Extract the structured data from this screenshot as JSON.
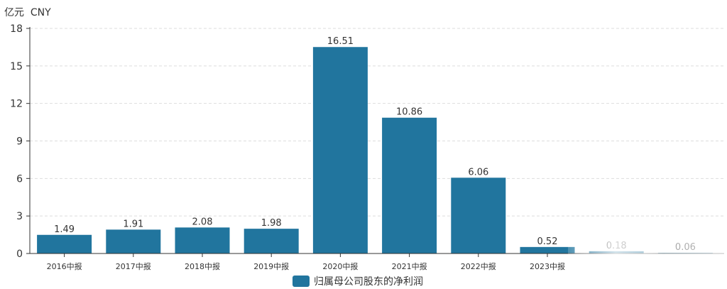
{
  "unit_label": "亿元  CNY",
  "colors": {
    "bar": "#21759e",
    "axis": "#333333",
    "grid": "#dddddd",
    "text": "#333333"
  },
  "legend": {
    "label": "归属母公司股东的净利润",
    "icon": "rounded-rect-swatch"
  },
  "chart_data": {
    "type": "bar",
    "title": "",
    "xlabel": "",
    "ylabel": "亿元  CNY",
    "categories": [
      "2016中报",
      "2017中报",
      "2018中报",
      "2019中报",
      "2020中报",
      "2021中报",
      "2022中报",
      "2023中报",
      "",
      ""
    ],
    "series": [
      {
        "name": "归属母公司股东的净利润",
        "values": [
          1.49,
          1.91,
          2.08,
          1.98,
          16.51,
          10.86,
          6.06,
          0.52,
          0.18,
          0.06
        ],
        "labels": [
          "1.49",
          "1.91",
          "2.08",
          "1.98",
          "16.51",
          "10.86",
          "6.06",
          "0.52",
          "0.18",
          "0.06"
        ]
      }
    ],
    "yticks": [
      0,
      3,
      6,
      9,
      12,
      15,
      18
    ],
    "ylim": [
      0,
      18
    ],
    "grid": true,
    "legend_position": "bottom-center"
  }
}
